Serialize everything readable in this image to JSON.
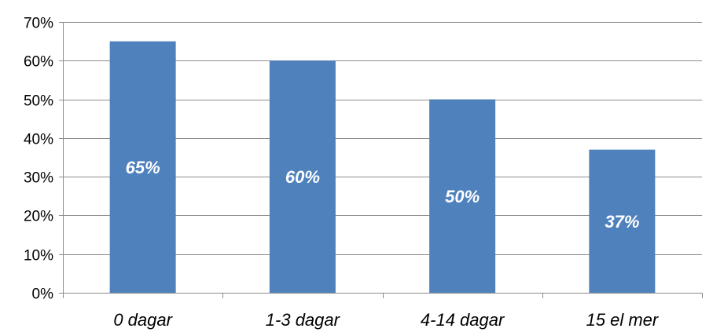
{
  "chart_data": {
    "type": "bar",
    "categories": [
      "0 dagar",
      "1-3 dagar",
      "4-14 dagar",
      "15 el mer"
    ],
    "values": [
      65,
      60,
      50,
      37
    ],
    "data_labels": [
      "65%",
      "60%",
      "50%",
      "37%"
    ],
    "y_ticks": [
      {
        "value": 0,
        "label": "0%"
      },
      {
        "value": 10,
        "label": "10%"
      },
      {
        "value": 20,
        "label": "20%"
      },
      {
        "value": 30,
        "label": "30%"
      },
      {
        "value": 40,
        "label": "40%"
      },
      {
        "value": 50,
        "label": "50%"
      },
      {
        "value": 60,
        "label": "60%"
      },
      {
        "value": 70,
        "label": "70%"
      }
    ],
    "ylim": [
      0,
      70
    ],
    "title": "",
    "xlabel": "",
    "ylabel": "",
    "grid": true,
    "legend": "none",
    "bar_color": "#4F81BD",
    "grid_color": "#8C8C8C"
  }
}
